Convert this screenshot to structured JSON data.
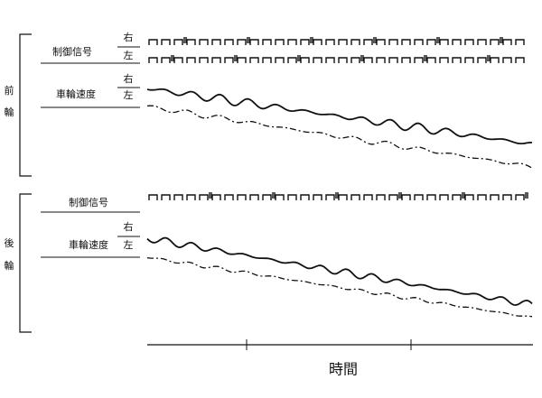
{
  "front": {
    "label": [
      "前",
      "輪"
    ],
    "control_signal": {
      "label": "制御信号",
      "right": "右",
      "left": "左"
    },
    "wheel_speed": {
      "label": "車輪速度",
      "right": "右",
      "left": "左"
    }
  },
  "rear": {
    "label": [
      "後",
      "輪"
    ],
    "control_signal": {
      "label": "制御信号"
    },
    "wheel_speed": {
      "label": "車輪速度",
      "right": "右",
      "left": "左"
    }
  },
  "x_axis": {
    "label": "時間"
  }
}
